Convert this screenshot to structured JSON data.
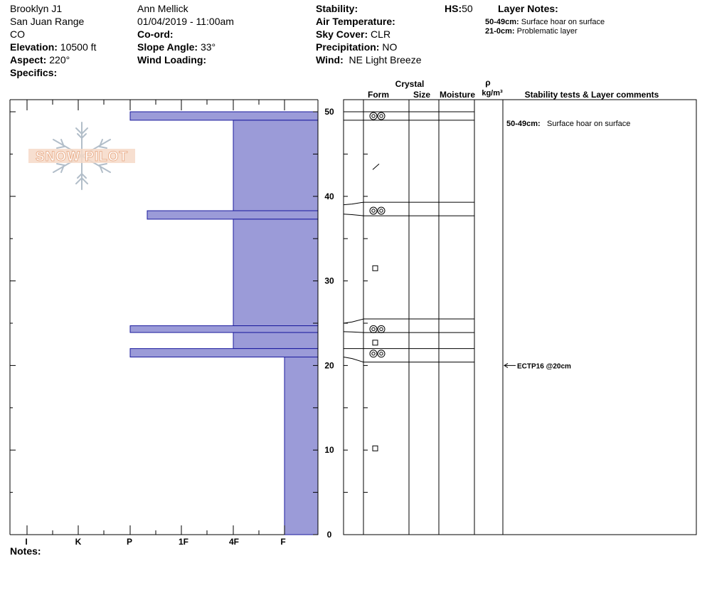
{
  "site": {
    "name": "Brooklyn J1",
    "range": "San Juan Range",
    "state": "CO",
    "elevation_label": "Elevation:",
    "elevation": "10500 ft",
    "aspect_label": "Aspect:",
    "aspect": "220°",
    "specifics_label": "Specifics:"
  },
  "observer": {
    "name": "Ann Mellick",
    "datetime": "01/04/2019 - 11:00am",
    "coord_label": "Co-ord:",
    "slope_label": "Slope Angle:",
    "slope": "33°",
    "wind_loading_label": "Wind Loading:"
  },
  "conditions": {
    "stability_label": "Stability:",
    "air_temp_label": "Air Temperature:",
    "sky_label": "Sky Cover:",
    "sky": "CLR",
    "precip_label": "Precipitation:",
    "precip": "NO",
    "wind_label": "Wind:",
    "wind": "NE Light Breeze",
    "hs_label": "HS:",
    "hs": "50"
  },
  "layer_notes": {
    "title": "Layer Notes:",
    "items": [
      {
        "range": "50-49cm:",
        "text": "Surface hoar on surface"
      },
      {
        "range": "21-0cm:",
        "text": "Problematic layer"
      }
    ]
  },
  "logo_text": "SNOW PILOT",
  "notes_label": "Notes:",
  "columns": {
    "crystal": "Crystal",
    "form": "Form",
    "size": "Size",
    "moisture": "Moisture",
    "rho": "ρ",
    "density_unit": "kg/m³",
    "stability_comments": "Stability tests & Layer comments"
  },
  "chart_data": {
    "type": "bar",
    "orientation": "horizontal",
    "ylim": [
      0,
      50
    ],
    "y_ticks": [
      "0",
      "10",
      "20",
      "30",
      "40",
      "50"
    ],
    "hardness_scale": [
      "I",
      "K",
      "P",
      "1F",
      "4F",
      "F"
    ],
    "hardness_profile": [
      {
        "bottom_cm": 49,
        "top_cm": 50,
        "hardness": "P"
      },
      {
        "bottom_cm": 38.3,
        "top_cm": 49,
        "hardness": "4F"
      },
      {
        "bottom_cm": 37.3,
        "top_cm": 38.3,
        "hardness": "P-"
      },
      {
        "bottom_cm": 24.7,
        "top_cm": 37.3,
        "hardness": "4F"
      },
      {
        "bottom_cm": 23.9,
        "top_cm": 24.7,
        "hardness": "P"
      },
      {
        "bottom_cm": 22,
        "top_cm": 23.9,
        "hardness": "4F"
      },
      {
        "bottom_cm": 21,
        "top_cm": 22,
        "hardness": "P"
      },
      {
        "bottom_cm": 0,
        "top_cm": 21,
        "hardness": "F"
      }
    ],
    "crystal_forms": [
      {
        "depth_cm": 49.5,
        "form": "surface-hoar"
      },
      {
        "depth_cm": 43.5,
        "form": "precipitation-particle"
      },
      {
        "depth_cm": 38.3,
        "form": "surface-hoar"
      },
      {
        "depth_cm": 31.5,
        "form": "faceted"
      },
      {
        "depth_cm": 24.3,
        "form": "surface-hoar"
      },
      {
        "depth_cm": 22.7,
        "form": "faceted"
      },
      {
        "depth_cm": 21.4,
        "form": "surface-hoar"
      },
      {
        "depth_cm": 10.2,
        "form": "faceted"
      }
    ],
    "layer_boundaries_cm": [
      50,
      49,
      39.3,
      37.7,
      25.5,
      23.9,
      22,
      20.4
    ],
    "layer_comments": [
      {
        "depth_cm": 49.5,
        "range": "50-49cm:",
        "text": "Surface hoar on surface"
      }
    ],
    "stability_tests": [
      {
        "depth_cm": 20,
        "label": "ECTP16 @20cm"
      }
    ]
  },
  "colors": {
    "hardness_fill": "#9b9bd8",
    "hardness_stroke": "#1b1b9e",
    "logo": "#f0c2a3"
  }
}
